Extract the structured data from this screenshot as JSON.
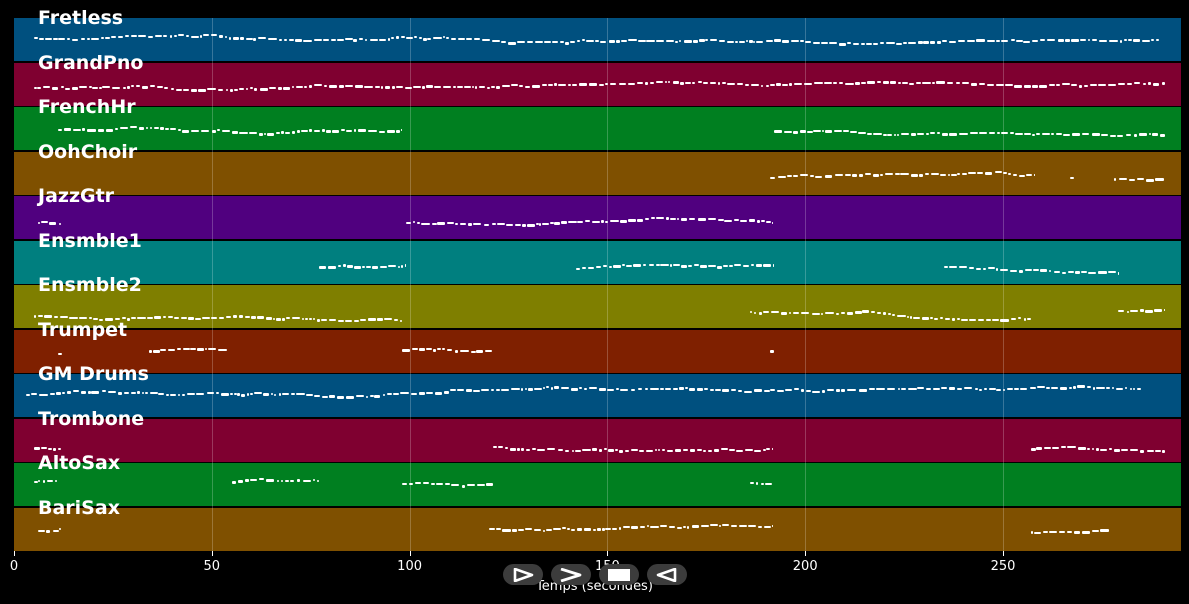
{
  "instruments": [
    {
      "name": "Fretless",
      "color": "#00507f"
    },
    {
      "name": "GrandPno",
      "color": "#7f0030"
    },
    {
      "name": "FrenchHr",
      "color": "#007f20"
    },
    {
      "name": "OohChoir",
      "color": "#7f5000"
    },
    {
      "name": "JazzGtr",
      "color": "#50007f"
    },
    {
      "name": "Ensmble1",
      "color": "#007f7f"
    },
    {
      "name": "Ensmble2",
      "color": "#7f7f00"
    },
    {
      "name": "Trumpet",
      "color": "#7f2000"
    },
    {
      "name": "GM Drums",
      "color": "#00507f"
    },
    {
      "name": "Trombone",
      "color": "#7f0030"
    },
    {
      "name": "AltoSax",
      "color": "#007f20"
    },
    {
      "name": "BariSax",
      "color": "#7f5000"
    }
  ],
  "axis": {
    "xlabel": "Temps (secondes)",
    "ticks": [
      "0",
      "50",
      "100",
      "150",
      "200",
      "250"
    ],
    "tick_values": [
      0,
      50,
      100,
      150,
      200,
      250
    ],
    "xlim": [
      0,
      295
    ]
  },
  "activity": [
    {
      "segments": [
        [
          5,
          290
        ]
      ]
    },
    {
      "segments": [
        [
          5,
          291
        ]
      ]
    },
    {
      "segments": [
        [
          11,
          98
        ],
        [
          192,
          291
        ]
      ]
    },
    {
      "segments": [
        [
          191,
          258
        ],
        [
          267,
          268
        ],
        [
          278,
          291
        ]
      ]
    },
    {
      "segments": [
        [
          6,
          12
        ],
        [
          99,
          192
        ]
      ]
    },
    {
      "segments": [
        [
          77,
          99
        ],
        [
          142,
          192
        ],
        [
          235,
          279
        ]
      ]
    },
    {
      "segments": [
        [
          5,
          98
        ],
        [
          186,
          257
        ],
        [
          279,
          291
        ]
      ]
    },
    {
      "segments": [
        [
          11,
          12
        ],
        [
          34,
          54
        ],
        [
          98,
          121
        ],
        [
          191,
          192
        ]
      ]
    },
    {
      "segments": [
        [
          3,
          285
        ]
      ]
    },
    {
      "segments": [
        [
          5,
          12
        ],
        [
          121,
          192
        ],
        [
          257,
          291
        ]
      ]
    },
    {
      "segments": [
        [
          5,
          11
        ],
        [
          55,
          77
        ],
        [
          98,
          121
        ],
        [
          186,
          192
        ]
      ]
    },
    {
      "segments": [
        [
          6,
          12
        ],
        [
          120,
          192
        ],
        [
          257,
          277
        ]
      ]
    }
  ],
  "controls": [
    {
      "name": "play-icon"
    },
    {
      "name": "fast-forward-icon"
    },
    {
      "name": "stop-icon"
    },
    {
      "name": "rewind-icon"
    }
  ]
}
